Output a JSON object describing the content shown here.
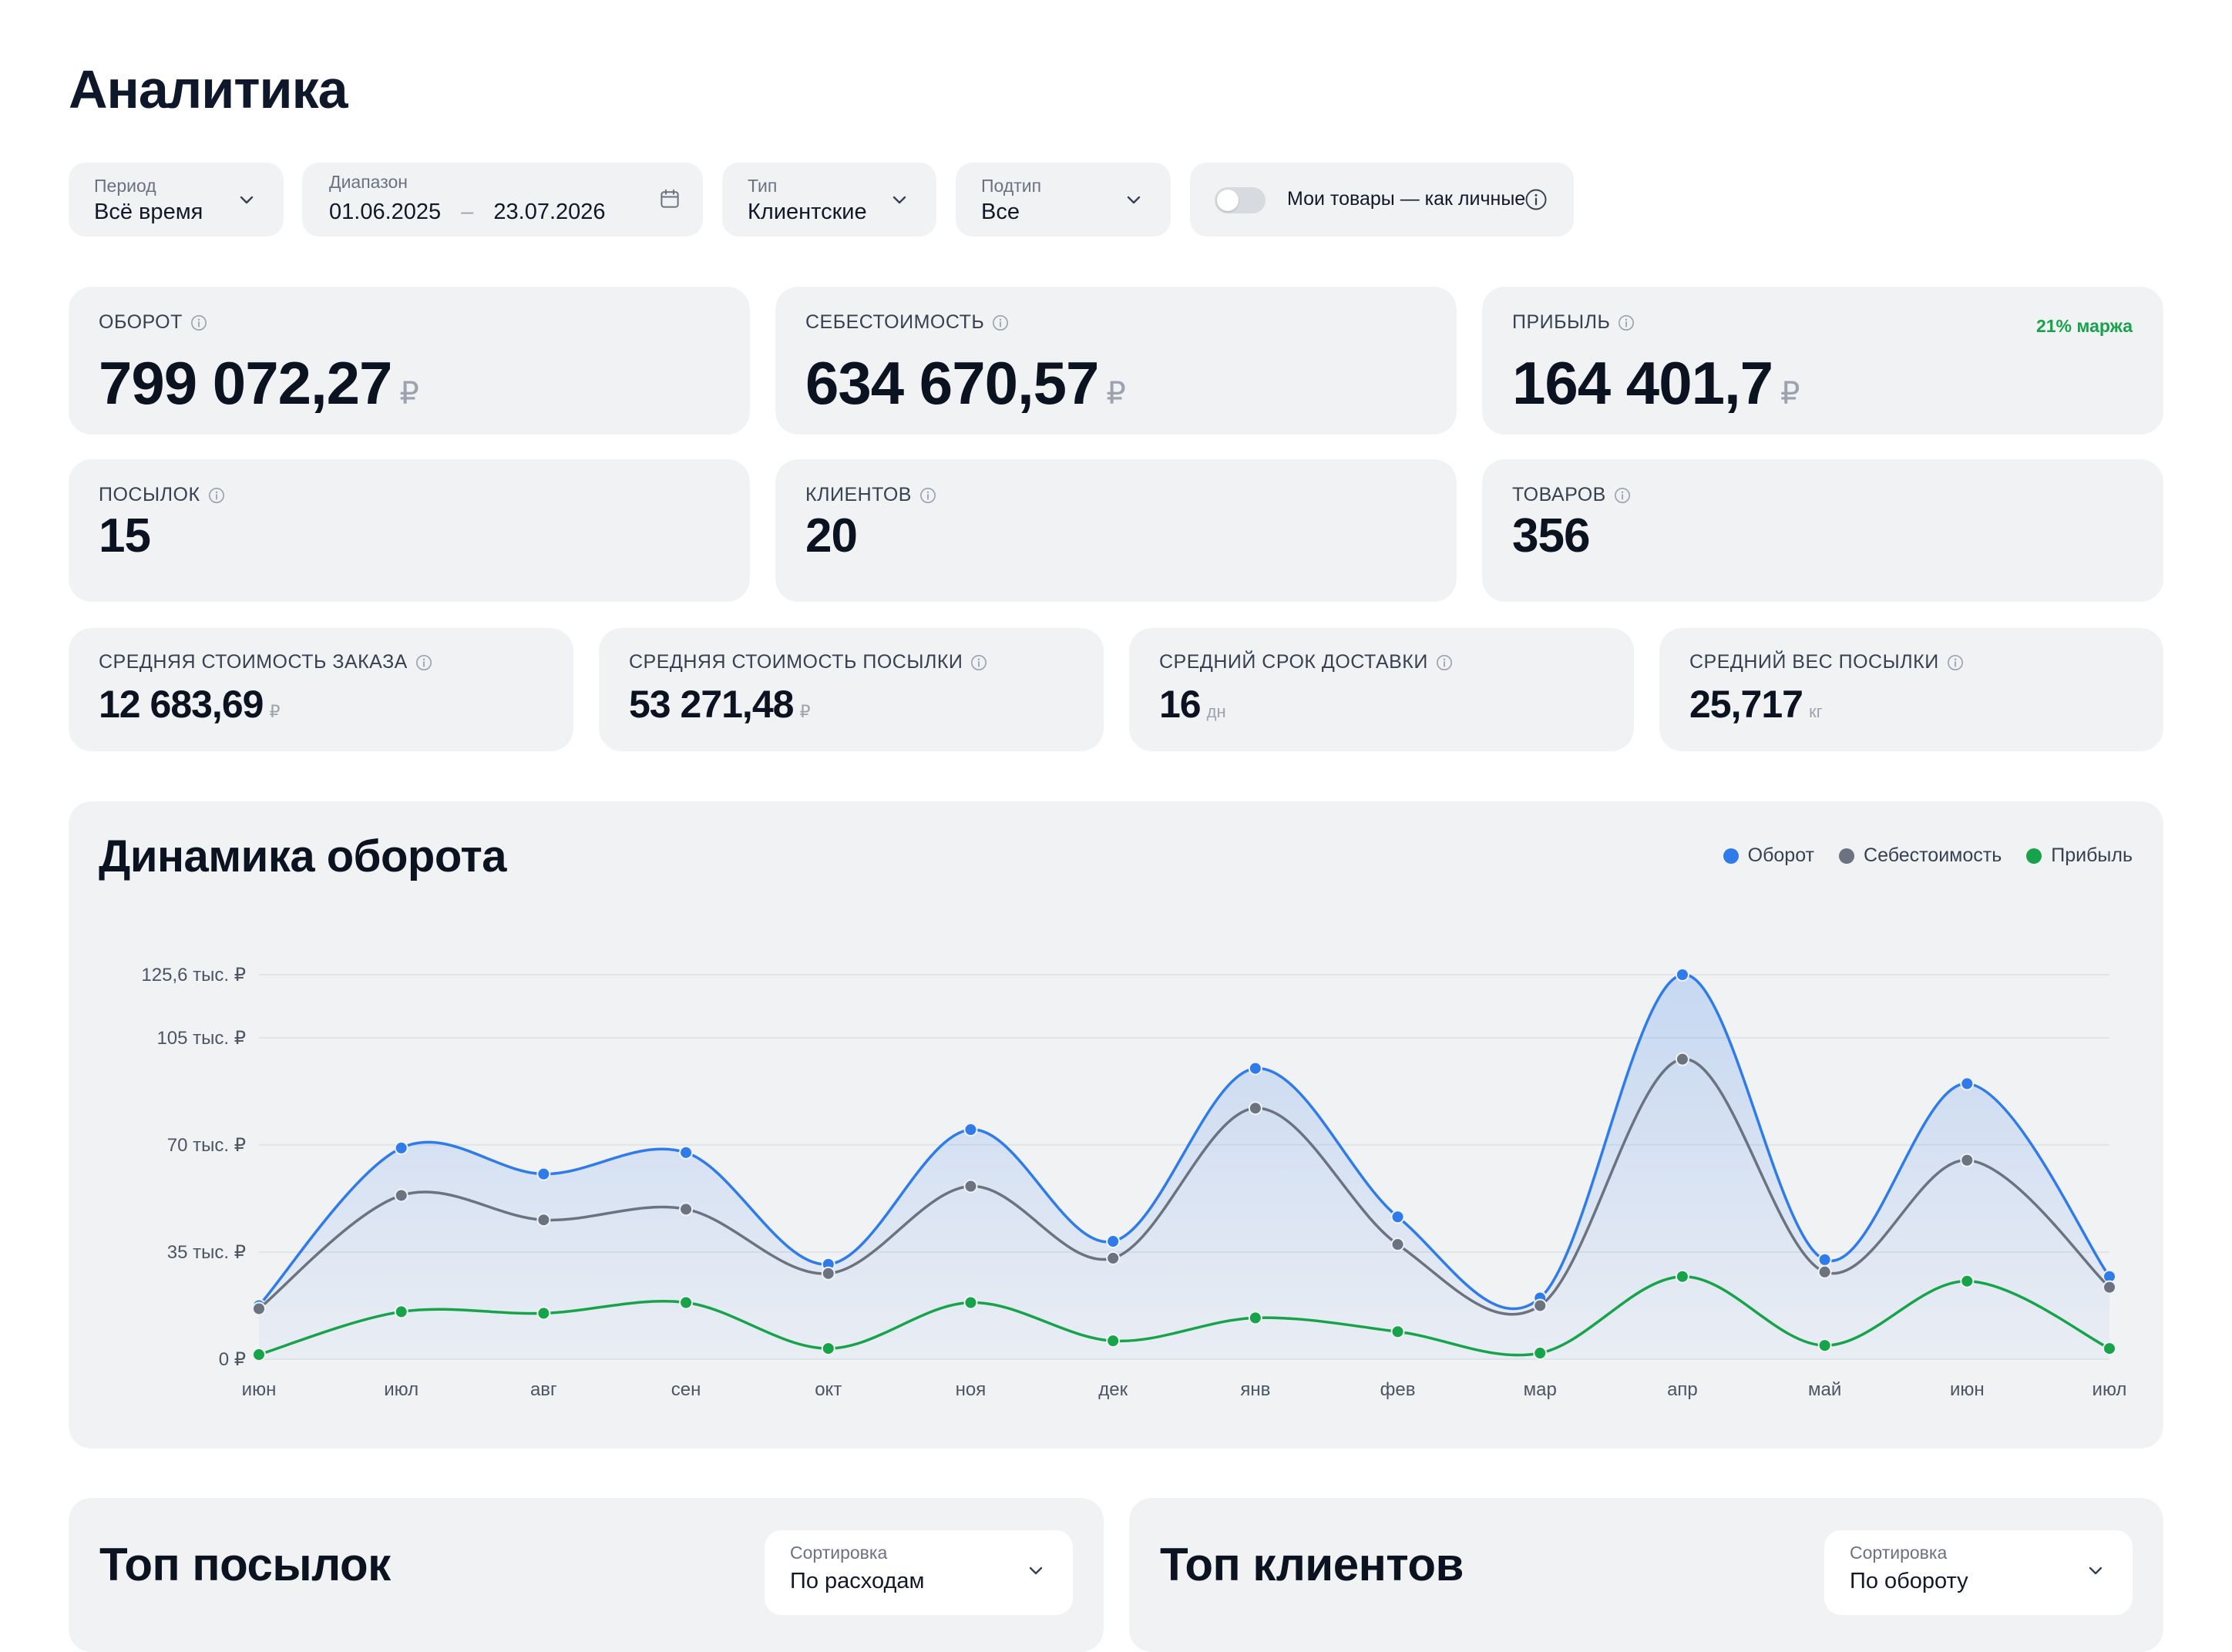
{
  "page": {
    "title": "Аналитика"
  },
  "filters": {
    "period": {
      "label": "Период",
      "value": "Всё время"
    },
    "range": {
      "label": "Диапазон",
      "from": "01.06.2025",
      "dash": "–",
      "to": "23.07.2026"
    },
    "type": {
      "label": "Тип",
      "value": "Клиентские"
    },
    "subtype": {
      "label": "Подтип",
      "value": "Все"
    },
    "my_goods_toggle": {
      "label": "Мои товары — как личные",
      "on": false
    }
  },
  "kpis": {
    "turnover": {
      "label": "ОБОРОТ",
      "value": "799 072,27",
      "unit": "₽"
    },
    "cost": {
      "label": "СЕБЕСТОИМОСТЬ",
      "value": "634 670,57",
      "unit": "₽"
    },
    "profit": {
      "label": "ПРИБЫЛЬ",
      "value": "164 401,7",
      "unit": "₽",
      "margin": "21% маржа"
    },
    "parcels": {
      "label": "ПОСЫЛОК",
      "value": "15"
    },
    "clients": {
      "label": "КЛИЕНТОВ",
      "value": "20"
    },
    "goods": {
      "label": "ТОВАРОВ",
      "value": "356"
    },
    "avg_order": {
      "label": "СРЕДНЯЯ СТОИМОСТЬ ЗАКАЗА",
      "value": "12 683,69",
      "unit": "₽"
    },
    "avg_parcel": {
      "label": "СРЕДНЯЯ СТОИМОСТЬ ПОСЫЛКИ",
      "value": "53 271,48",
      "unit": "₽"
    },
    "avg_delivery": {
      "label": "СРЕДНИЙ СРОК ДОСТАВКИ",
      "value": "16",
      "unit": "дн"
    },
    "avg_weight": {
      "label": "СРЕДНИЙ ВЕС ПОСЫЛКИ",
      "value": "25,717",
      "unit": "кг"
    }
  },
  "chart": {
    "title": "Динамика оборота"
  },
  "chart_data": {
    "type": "area",
    "title": "Динамика оборота",
    "categories": [
      "июн",
      "июл",
      "авг",
      "сен",
      "окт",
      "ноя",
      "дек",
      "янв",
      "фев",
      "мар",
      "апр",
      "май",
      "июн",
      "июл"
    ],
    "y_ticks": [
      {
        "value": 0,
        "label": "0 ₽"
      },
      {
        "value": 35000,
        "label": "35 тыс. ₽"
      },
      {
        "value": 70000,
        "label": "70 тыс. ₽"
      },
      {
        "value": 105000,
        "label": "105 тыс. ₽"
      },
      {
        "value": 125600,
        "label": "125,6 тыс. ₽"
      }
    ],
    "ylim": [
      0,
      125600
    ],
    "grid": true,
    "legend_position": "top-right",
    "series": [
      {
        "name": "Оборот",
        "color": "#2f7bea",
        "fill": true,
        "values": [
          17500,
          69000,
          60500,
          67500,
          31000,
          75000,
          38500,
          95000,
          46500,
          20000,
          125600,
          32500,
          90000,
          27000
        ]
      },
      {
        "name": "Себестоимость",
        "color": "#6b7280",
        "fill": false,
        "values": [
          16500,
          53500,
          45500,
          49000,
          28000,
          56500,
          33000,
          82000,
          37500,
          17500,
          98000,
          28500,
          65000,
          23500
        ]
      },
      {
        "name": "Прибыль",
        "color": "#16a34a",
        "fill": false,
        "values": [
          1500,
          15500,
          15000,
          18500,
          3500,
          18500,
          6000,
          13500,
          9000,
          2000,
          27000,
          4500,
          25500,
          3500
        ]
      }
    ]
  },
  "top_parcels": {
    "title": "Топ посылок",
    "sort_label": "Сортировка",
    "sort_value": "По расходам"
  },
  "top_clients": {
    "title": "Топ клиентов",
    "sort_label": "Сортировка",
    "sort_value": "По обороту"
  }
}
